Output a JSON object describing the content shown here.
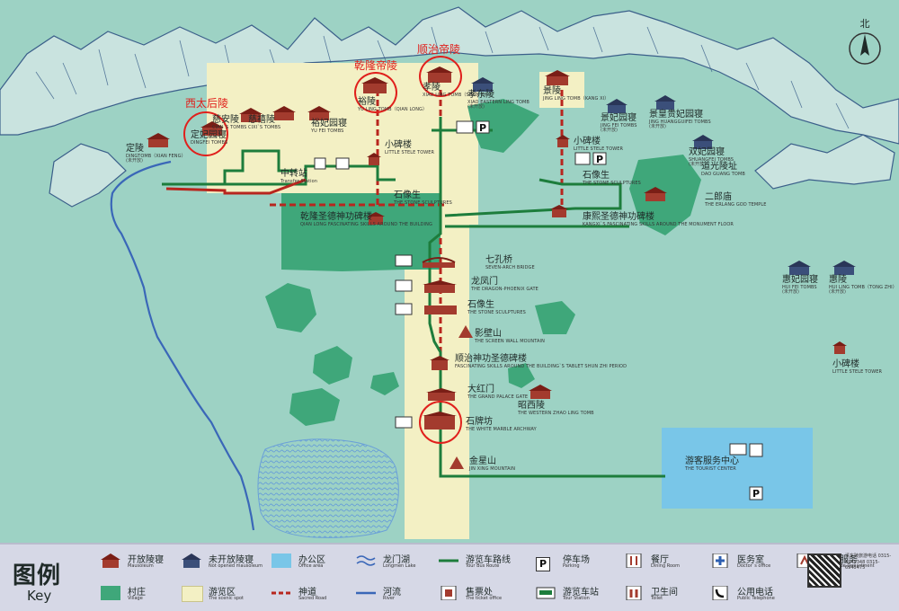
{
  "north": "北",
  "highlights": [
    {
      "id": "xitaihou",
      "label": "西太后陵"
    },
    {
      "id": "qianlong",
      "label": "乾隆帝陵"
    },
    {
      "id": "shunzhi",
      "label": "顺治帝陵"
    }
  ],
  "places": {
    "dingling": {
      "zh": "定陵",
      "en": "DINGTOMB（XIAN FENG）",
      "sub": "(未开放)"
    },
    "dingfei": {
      "zh": "定妃园寝",
      "en": "DINGFEI TOMBS"
    },
    "cian": {
      "zh": "慈安陵",
      "en": "CIAN`S TOMBS"
    },
    "cixi": {
      "zh": "慈禧陵",
      "en": "CIXI`S TOMBS"
    },
    "yufei": {
      "zh": "裕妃园寝",
      "en": "YU FEI TOMBS"
    },
    "yuling": {
      "zh": "裕陵",
      "en": "YU LING TOMB（QIAN LONG）",
      "sub": "(乾隆)"
    },
    "xiaoling": {
      "zh": "孝陵",
      "en": "XIAO LING TOMB（SHUN ZHI）",
      "sub": "(顺治)"
    },
    "xiaodong": {
      "zh": "孝东陵",
      "en": "XIAO EASTERN LING TOMB",
      "sub": "(未开放)"
    },
    "jingling": {
      "zh": "景陵",
      "en": "JING LING TOMB（KANG XI）",
      "sub": "(康熙)"
    },
    "jingfei": {
      "zh": "景妃园寝",
      "en": "JING FEI TOMBS",
      "sub": "(未开放)"
    },
    "jinghuanggui": {
      "zh": "景皇贵妃园寝",
      "en": "JING HUANGGUIFEI TOMBS",
      "sub": "(未开放)"
    },
    "shuangfei": {
      "zh": "双妃园寝",
      "en": "SHUANGFEI TOMBS",
      "sub": "(未开放)"
    },
    "zhaoxi": {
      "zh": "昭西陵",
      "en": "THE WESTERN ZHAO LING TOMB"
    },
    "huiling": {
      "zh": "惠陵",
      "en": "HUI LING TOMB（TONG ZHI）",
      "sub": "(未开放)"
    },
    "huifei": {
      "zh": "惠妃园寝",
      "en": "HUI FEI TOMBS",
      "sub": "(未开放)"
    },
    "daoguang": {
      "zh": "道光陵址",
      "en": "DAO GUANG TOMB"
    },
    "erlang": {
      "zh": "二郎庙",
      "en": "THE ERLANG GOD TEMPLE"
    },
    "xiaobei1": {
      "zh": "小碑楼",
      "en": "LITTLE STELE TOWER"
    },
    "xiaobei2": {
      "zh": "小碑楼",
      "en": "LITTLE STELE TOWER"
    },
    "xiaobei3": {
      "zh": "小碑楼",
      "en": "LITTLE STELE TOWER"
    },
    "zhongzhuan": {
      "zh": "中转站",
      "en": "Transfer Station"
    },
    "shixiang1": {
      "zh": "石像生",
      "en": "THE STONE SCULPTURES"
    },
    "shixiang2": {
      "zh": "石像生",
      "en": "THE STONE SCULPTURES"
    },
    "shixiang3": {
      "zh": "石像生",
      "en": "THE STONE SCULPTURES"
    },
    "qianlongbei": {
      "zh": "乾隆圣德神功碑楼",
      "en": "QIAN LONG FASCINATING SKILLS AROUND THE BUILDING"
    },
    "kangxibei": {
      "zh": "康熙圣德神功碑楼",
      "en": "KANGXI`S FASCINATING SKILLS AROUND THE MONUMENT FLOOR"
    },
    "qikong": {
      "zh": "七孔桥",
      "en": "SEVEN-ARCH BRIDGE"
    },
    "longfeng": {
      "zh": "龙凤门",
      "en": "THE DRAGON-PHOENIX GATE"
    },
    "yingbi": {
      "zh": "影壁山",
      "en": "THE SCREEN WALL MOUNTAIN"
    },
    "shunzhibei": {
      "zh": "顺治神功圣德碑楼",
      "en": "FASCINATING SKILLS AROUND THE BUILDING`S TABLET SHUN ZHI PERIOD"
    },
    "dahongmen": {
      "zh": "大红门",
      "en": "THE GRAND PALACE GATE"
    },
    "shipaifang": {
      "zh": "石牌坊",
      "en": "THE WHITE MARBLE ARCHWAY"
    },
    "jinxing": {
      "zh": "金星山",
      "en": "JIN XING MOUNTAIN"
    },
    "fuwu": {
      "zh": "游客服务中心",
      "en": "THE TOURIST CENTER"
    }
  },
  "legend": {
    "title": "图例",
    "key": "Key",
    "items": [
      {
        "zh": "开放陵寝",
        "en": "Mausoleum"
      },
      {
        "zh": "未开放陵寝",
        "en": "Not opened mausoleum"
      },
      {
        "zh": "办公区",
        "en": "Office area"
      },
      {
        "zh": "龙门湖",
        "en": "Longmen Lake"
      },
      {
        "zh": "游览车路线",
        "en": "Tour Bus Route"
      },
      {
        "zh": "停车场",
        "en": "Parking"
      },
      {
        "zh": "餐厅",
        "en": "Dining Room"
      },
      {
        "zh": "医务室",
        "en": "Doctor`s office"
      },
      {
        "zh": "导游服务",
        "en": "Tour Guide Department"
      },
      {
        "zh": "村庄",
        "en": "Village"
      },
      {
        "zh": "游览区",
        "en": "The scenic spot"
      },
      {
        "zh": "神道",
        "en": "Sacred Road"
      },
      {
        "zh": "河流",
        "en": "River"
      },
      {
        "zh": "售票处",
        "en": "The ticket office"
      },
      {
        "zh": "游览车站",
        "en": "Tour Station"
      },
      {
        "zh": "卫生间",
        "en": "Toilet"
      },
      {
        "zh": "公用电话",
        "en": "Public Telephone"
      }
    ],
    "contact": "清东陵旅游电话 0315-6945348 0315-6945475"
  },
  "colors": {
    "background": "#9dd2c4",
    "scenic": "#f3f0c4",
    "office": "#79c6e8",
    "village": "#3fa77a",
    "sacred_road": "#b8261e",
    "tour_bus": "#1d7d3c",
    "river": "#3a67b8",
    "highlight": "#e0201c"
  }
}
